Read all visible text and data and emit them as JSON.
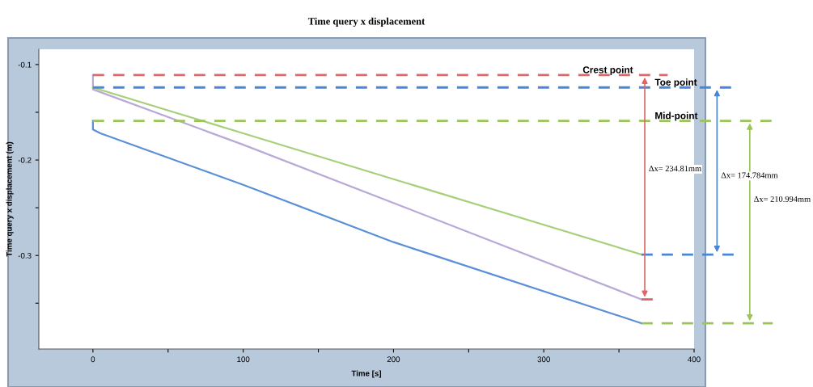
{
  "chart_data": {
    "type": "line",
    "title": "Time query x displacement",
    "xlabel": "Time [s]",
    "ylabel": "Time query x displacement (m)",
    "xlim": [
      -36,
      400
    ],
    "ylim": [
      -0.398,
      -0.084
    ],
    "xticks": [
      0,
      {
        "value": 50,
        "label": null
      },
      100,
      {
        "value": 150,
        "label": null
      },
      200,
      {
        "value": 250,
        "label": null
      },
      300,
      {
        "value": 350,
        "label": null
      },
      400
    ],
    "yticks": [
      {
        "value": -0.35,
        "label": null
      },
      -0.3,
      {
        "value": -0.25,
        "label": null
      },
      -0.2,
      {
        "value": -0.15,
        "label": null
      },
      -0.1
    ],
    "grid": false,
    "marker": "none",
    "line_style": "solid",
    "series": [
      {
        "color": "#b9a9d9",
        "x": [
          0,
          0,
          100,
          200,
          365
        ],
        "values": [
          -0.111,
          -0.126,
          -0.184,
          -0.245,
          -0.346
        ]
      },
      {
        "color": "#a8cf7a",
        "x": [
          0,
          100,
          200,
          365
        ],
        "values": [
          -0.124,
          -0.172,
          -0.22,
          -0.299
        ]
      },
      {
        "color": "#5b8fd6",
        "x": [
          0,
          0,
          5,
          100,
          200,
          365
        ],
        "values": [
          -0.159,
          -0.168,
          -0.172,
          -0.226,
          -0.286,
          -0.371
        ]
      },
      {
        "type": "line",
        "color": "#e06666",
        "line_style": "dashed",
        "x": [
          365,
          373
        ],
        "values": [
          -0.346,
          -0.346
        ]
      }
    ],
    "ref_lines": [
      {
        "axis": "y",
        "value": -0.111,
        "label": "Crest point",
        "color": "#e06666",
        "line_style": "dashed"
      },
      {
        "axis": "y",
        "value": -0.124,
        "label": "Toe point",
        "color": "#4a86d8",
        "line_style": "dashed"
      },
      {
        "axis": "y",
        "value": -0.159,
        "label": "Mid-point",
        "color": "#9bc45a",
        "line_style": "dashed"
      },
      {
        "axis": "y",
        "value": -0.299,
        "color": "#4a86d8",
        "line_style": "dashed"
      },
      {
        "axis": "y",
        "value": -0.371,
        "color": "#9bc45a",
        "line_style": "dashed"
      }
    ],
    "annotations": [
      "Δx= 234.81mm",
      "Δx= 174.784mm",
      "Δx= 210.994mm"
    ]
  }
}
